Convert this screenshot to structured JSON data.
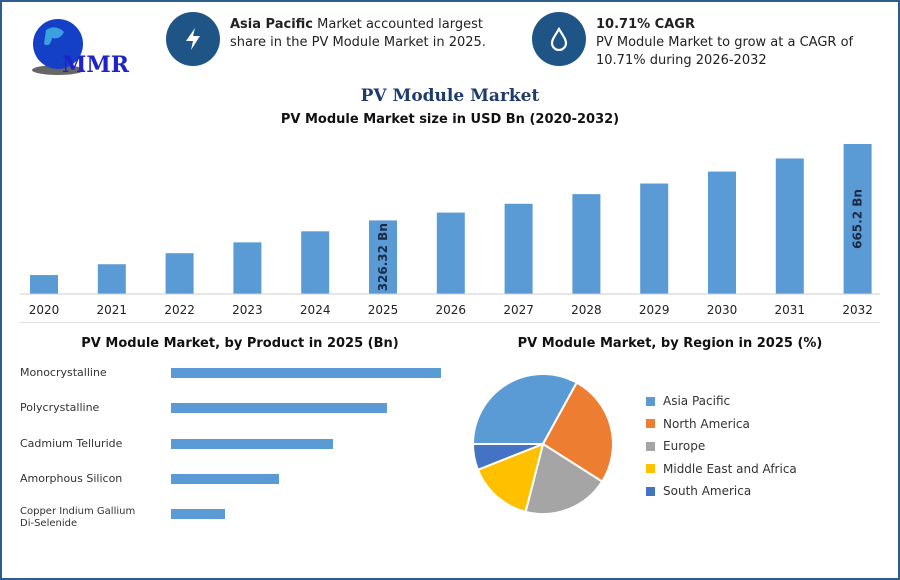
{
  "logo": {
    "text": "MMR"
  },
  "info1": {
    "bold": "Asia Pacific",
    "text": " Market accounted largest share in the PV Module Market in 2025.",
    "icon": "lightning-icon"
  },
  "info2": {
    "bold": "10.71% CAGR",
    "text": "PV Module Market to grow at a CAGR of 10.71% during 2026-2032",
    "icon": "drop-icon"
  },
  "title": "PV Module Market",
  "chart_data": [
    {
      "type": "bar",
      "title": "PV Module Market size in USD Bn (2020-2032)",
      "categories": [
        "2020",
        "2021",
        "2022",
        "2023",
        "2024",
        "2025",
        "2026",
        "2027",
        "2028",
        "2029",
        "2030",
        "2031",
        "2032"
      ],
      "values": [
        84,
        132,
        181,
        229,
        278,
        326.32,
        361,
        400,
        443,
        490,
        543,
        601,
        665.2
      ],
      "data_labels": {
        "2025": "326.32 Bn",
        "2032": "665.2 Bn"
      },
      "color": "#5b9bd5",
      "ylim": [
        0,
        700
      ]
    },
    {
      "type": "bar",
      "orientation": "horizontal",
      "title": "PV Module Market, by Product in 2025 (Bn)",
      "categories": [
        "Monocrystalline",
        "Polycrystalline",
        "Cadmium Telluride",
        "Amorphous Silicon",
        "Copper Indium Gallium Di-Selenide"
      ],
      "values": [
        100,
        80,
        60,
        40,
        20
      ],
      "color": "#5b9bd5"
    },
    {
      "type": "pie",
      "title": "PV Module Market, by Region in 2025 (%)",
      "categories": [
        "Asia Pacific",
        "North America",
        "Europe",
        "Middle East and Africa",
        "South America"
      ],
      "values": [
        33,
        26,
        20,
        15,
        6
      ],
      "colors": [
        "#5b9bd5",
        "#ed7d31",
        "#a5a5a5",
        "#ffc000",
        "#4472c4"
      ],
      "legend": "right"
    }
  ]
}
